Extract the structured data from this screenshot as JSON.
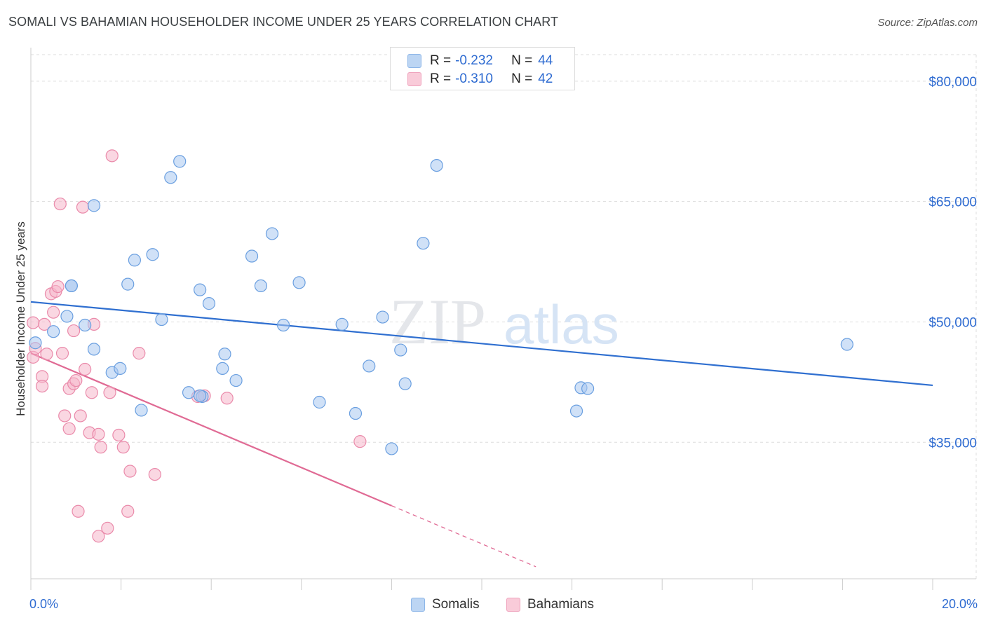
{
  "header": {
    "title": "SOMALI VS BAHAMIAN HOUSEHOLDER INCOME UNDER 25 YEARS CORRELATION CHART",
    "source": "Source: ZipAtlas.com"
  },
  "watermark": {
    "zip": "ZIP",
    "atlas": "atlas"
  },
  "legend": {
    "rows": [
      {
        "r_label": "R =",
        "r_value": "-0.232",
        "n_label": "N =",
        "n_value": "44",
        "color": "#a9c8f0"
      },
      {
        "r_label": "R =",
        "r_value": "-0.310",
        "n_label": "N =",
        "n_value": "42",
        "color": "#f5b6cb"
      }
    ]
  },
  "bottom_legend": {
    "somalis": "Somalis",
    "bahamians": "Bahamians"
  },
  "colors": {
    "somali_fill": "#a9c8f0",
    "somali_stroke": "#6a9fe0",
    "somali_line": "#2f6fd0",
    "bahamian_fill": "#f5b6cb",
    "bahamian_stroke": "#ea8aaa",
    "bahamian_line": "#e06a94",
    "axis_label": "#2e6bd1",
    "grid": "#dddddd"
  },
  "chart_data": {
    "type": "scatter",
    "title": "SOMALI VS BAHAMIAN HOUSEHOLDER INCOME UNDER 25 YEARS CORRELATION CHART",
    "xlabel": "",
    "ylabel": "Householder Income Under 25 years",
    "xlim": [
      0,
      20
    ],
    "ylim": [
      18000,
      84000
    ],
    "x_tick_labels": [
      "0.0%",
      "20.0%"
    ],
    "y_ticks": [
      35000,
      50000,
      65000,
      80000
    ],
    "y_tick_labels": [
      "$35,000",
      "$50,000",
      "$65,000",
      "$80,000"
    ],
    "series": [
      {
        "name": "Somalis",
        "points": [
          [
            0.1,
            47400
          ],
          [
            0.5,
            48800
          ],
          [
            0.9,
            54500
          ],
          [
            0.8,
            50700
          ],
          [
            1.2,
            49600
          ],
          [
            1.4,
            46600
          ],
          [
            1.4,
            64500
          ],
          [
            1.8,
            43700
          ],
          [
            1.98,
            44200
          ],
          [
            2.15,
            54700
          ],
          [
            2.3,
            57700
          ],
          [
            2.45,
            39000
          ],
          [
            2.7,
            58400
          ],
          [
            2.9,
            50300
          ],
          [
            3.1,
            68000
          ],
          [
            3.3,
            70000
          ],
          [
            3.5,
            41200
          ],
          [
            3.75,
            54000
          ],
          [
            3.8,
            40700
          ],
          [
            3.95,
            52300
          ],
          [
            4.25,
            44200
          ],
          [
            4.3,
            46000
          ],
          [
            4.55,
            42700
          ],
          [
            4.9,
            58200
          ],
          [
            5.1,
            54500
          ],
          [
            5.35,
            61000
          ],
          [
            5.6,
            49600
          ],
          [
            5.95,
            54900
          ],
          [
            6.4,
            40000
          ],
          [
            6.9,
            49700
          ],
          [
            7.2,
            38600
          ],
          [
            7.5,
            44500
          ],
          [
            7.8,
            50600
          ],
          [
            8.0,
            34200
          ],
          [
            8.2,
            46500
          ],
          [
            8.3,
            42300
          ],
          [
            8.7,
            59800
          ],
          [
            9.0,
            69500
          ],
          [
            12.1,
            38900
          ],
          [
            12.2,
            41800
          ],
          [
            12.35,
            41700
          ],
          [
            18.1,
            47200
          ],
          [
            0.9,
            54500
          ],
          [
            3.75,
            40800
          ]
        ]
      },
      {
        "name": "Bahamians",
        "points": [
          [
            0.05,
            45600
          ],
          [
            0.05,
            49900
          ],
          [
            0.1,
            46700
          ],
          [
            0.25,
            43200
          ],
          [
            0.25,
            42000
          ],
          [
            0.3,
            49700
          ],
          [
            0.35,
            46000
          ],
          [
            0.45,
            53500
          ],
          [
            0.5,
            51200
          ],
          [
            0.55,
            53800
          ],
          [
            0.6,
            54400
          ],
          [
            0.65,
            64700
          ],
          [
            0.7,
            46100
          ],
          [
            0.75,
            38300
          ],
          [
            0.85,
            41700
          ],
          [
            0.85,
            36700
          ],
          [
            0.95,
            42300
          ],
          [
            0.95,
            48900
          ],
          [
            1.0,
            42700
          ],
          [
            1.05,
            26400
          ],
          [
            1.1,
            38300
          ],
          [
            1.15,
            64300
          ],
          [
            1.2,
            44100
          ],
          [
            1.3,
            36200
          ],
          [
            1.35,
            41200
          ],
          [
            1.4,
            49700
          ],
          [
            1.5,
            23300
          ],
          [
            1.5,
            36000
          ],
          [
            1.55,
            34400
          ],
          [
            1.7,
            24300
          ],
          [
            1.75,
            41200
          ],
          [
            1.8,
            70700
          ],
          [
            1.95,
            35900
          ],
          [
            2.05,
            34400
          ],
          [
            2.15,
            26400
          ],
          [
            2.2,
            31400
          ],
          [
            2.4,
            46100
          ],
          [
            2.75,
            31000
          ],
          [
            3.7,
            40700
          ],
          [
            3.85,
            40800
          ],
          [
            4.35,
            40500
          ],
          [
            7.3,
            35100
          ]
        ]
      }
    ],
    "trend_lines": [
      {
        "name": "Somalis",
        "x": [
          0,
          20
        ],
        "y": [
          52500,
          42100
        ]
      },
      {
        "name": "Bahamians",
        "x": [
          0,
          8.0
        ],
        "y": [
          46100,
          27100
        ],
        "dashed_extension_to_x": 11.2
      }
    ]
  }
}
